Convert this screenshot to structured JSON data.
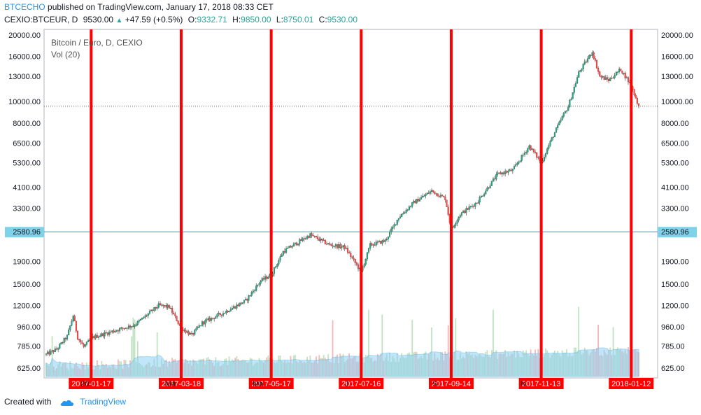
{
  "header": {
    "author": "BTCECHO",
    "published_text": "published on TradingView.com, January 17, 2018 08:33 CET",
    "symbol": "CEXIO:BTCEUR, D",
    "last_price": "9530.00",
    "change": "+47.59 (+0.5%)",
    "o_label": "O:",
    "o_value": "9332.71",
    "h_label": "H:",
    "h_value": "9850.00",
    "l_label": "L:",
    "l_value": "8750.01",
    "c_label": "C:",
    "c_value": "9530.00"
  },
  "legend": {
    "title": "Bitcoin / Euro, D, CEXIO",
    "volume": "Vol (20)"
  },
  "footer": {
    "created_with": "Created with",
    "brand": "TradingView"
  },
  "colors": {
    "up": "#26a69a",
    "down": "#ef5350",
    "marker": "#ff0000",
    "volume_ma": "#8fd0f5",
    "level_line": "#2aa0b8",
    "accent": "#2196f3"
  },
  "chart_data": {
    "type": "candlestick",
    "symbol": "BTCEUR",
    "interval": "D",
    "y_scale": "log",
    "y_ticks": [
      "20000.00",
      "16000.00",
      "13000.00",
      "10000.00",
      "8000.00",
      "6500.00",
      "5300.00",
      "4100.00",
      "3300.00",
      "2580.96",
      "1900.00",
      "1500.00",
      "1200.00",
      "960.00",
      "785.00",
      "625.00"
    ],
    "horizontal_level": {
      "value": 2580.96,
      "label": "2580.96"
    },
    "last_price_line": 9530.0,
    "x_ticks_partial": [
      "20",
      "Ma",
      "Ma",
      "J",
      "S",
      "N"
    ],
    "vertical_markers": [
      {
        "date": "2017-01-17",
        "label": "2017-01-17"
      },
      {
        "date": "2017-03-18",
        "label": "2017-03-18"
      },
      {
        "date": "2017-05-17",
        "label": "2017-05-17"
      },
      {
        "date": "2017-07-16",
        "label": "2017-07-16"
      },
      {
        "date": "2017-09-14",
        "label": "2017-09-14"
      },
      {
        "date": "2017-11-13",
        "label": "2017-11-13"
      },
      {
        "date": "2018-01-12",
        "label": "2018-01-12"
      }
    ],
    "price_path": [
      {
        "date": "2016-12-18",
        "close": 720
      },
      {
        "date": "2016-12-25",
        "close": 760
      },
      {
        "date": "2017-01-01",
        "close": 870
      },
      {
        "date": "2017-01-05",
        "close": 1080
      },
      {
        "date": "2017-01-08",
        "close": 860
      },
      {
        "date": "2017-01-12",
        "close": 780
      },
      {
        "date": "2017-01-18",
        "close": 860
      },
      {
        "date": "2017-02-01",
        "close": 920
      },
      {
        "date": "2017-02-15",
        "close": 980
      },
      {
        "date": "2017-03-03",
        "close": 1200
      },
      {
        "date": "2017-03-10",
        "close": 1180
      },
      {
        "date": "2017-03-18",
        "close": 950
      },
      {
        "date": "2017-03-25",
        "close": 880
      },
      {
        "date": "2017-04-01",
        "close": 1000
      },
      {
        "date": "2017-04-15",
        "close": 1110
      },
      {
        "date": "2017-04-30",
        "close": 1260
      },
      {
        "date": "2017-05-10",
        "close": 1550
      },
      {
        "date": "2017-05-17",
        "close": 1650
      },
      {
        "date": "2017-05-25",
        "close": 2100
      },
      {
        "date": "2017-06-01",
        "close": 2250
      },
      {
        "date": "2017-06-12",
        "close": 2500
      },
      {
        "date": "2017-06-25",
        "close": 2250
      },
      {
        "date": "2017-07-05",
        "close": 2200
      },
      {
        "date": "2017-07-16",
        "close": 1700
      },
      {
        "date": "2017-07-22",
        "close": 2250
      },
      {
        "date": "2017-08-01",
        "close": 2350
      },
      {
        "date": "2017-08-10",
        "close": 3000
      },
      {
        "date": "2017-08-20",
        "close": 3500
      },
      {
        "date": "2017-09-01",
        "close": 3950
      },
      {
        "date": "2017-09-10",
        "close": 3650
      },
      {
        "date": "2017-09-14",
        "close": 2650
      },
      {
        "date": "2017-09-20",
        "close": 3100
      },
      {
        "date": "2017-10-01",
        "close": 3500
      },
      {
        "date": "2017-10-15",
        "close": 4700
      },
      {
        "date": "2017-10-25",
        "close": 4900
      },
      {
        "date": "2017-11-05",
        "close": 6300
      },
      {
        "date": "2017-11-13",
        "close": 5300
      },
      {
        "date": "2017-11-20",
        "close": 6800
      },
      {
        "date": "2017-11-27",
        "close": 8500
      },
      {
        "date": "2017-12-01",
        "close": 9500
      },
      {
        "date": "2017-12-08",
        "close": 13500
      },
      {
        "date": "2017-12-17",
        "close": 16800
      },
      {
        "date": "2017-12-22",
        "close": 13000
      },
      {
        "date": "2017-12-28",
        "close": 12500
      },
      {
        "date": "2018-01-05",
        "close": 14000
      },
      {
        "date": "2018-01-12",
        "close": 11800
      },
      {
        "date": "2018-01-17",
        "close": 9530
      }
    ]
  }
}
